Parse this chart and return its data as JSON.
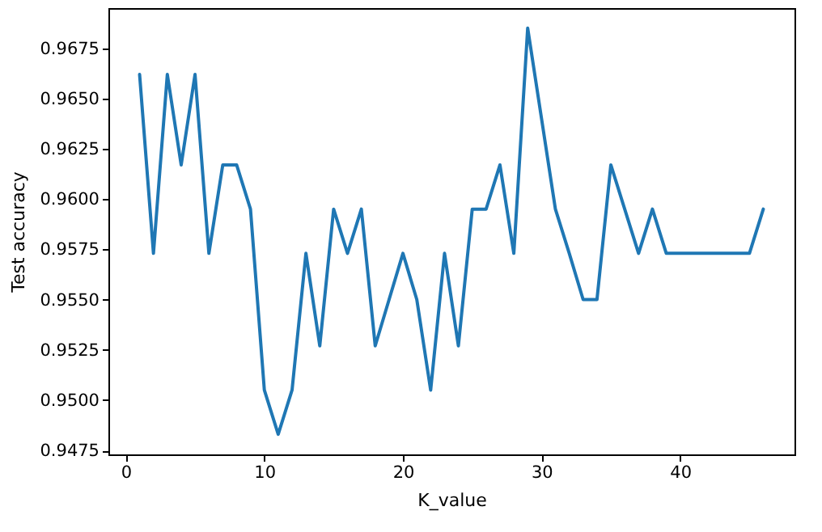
{
  "chart_data": {
    "type": "line",
    "xlabel": "K_value",
    "ylabel": "Test accuracy",
    "x": [
      1,
      2,
      3,
      4,
      5,
      6,
      7,
      8,
      9,
      10,
      11,
      12,
      13,
      14,
      15,
      16,
      17,
      18,
      19,
      20,
      21,
      22,
      23,
      24,
      25,
      26,
      27,
      28,
      29,
      30,
      31,
      32,
      33,
      34,
      35,
      36,
      37,
      38,
      39,
      40,
      41,
      42,
      43,
      44,
      45,
      46
    ],
    "series": [
      {
        "color": "#1f77b4",
        "values": [
          0.9662,
          0.9573,
          0.9662,
          0.9617,
          0.9662,
          0.9573,
          0.9617,
          0.9617,
          0.9595,
          0.9505,
          0.9483,
          0.9505,
          0.9573,
          0.9527,
          0.9595,
          0.9573,
          0.9595,
          0.9527,
          0.955,
          0.9573,
          0.955,
          0.9505,
          0.9573,
          0.9527,
          0.9595,
          0.9595,
          0.9617,
          0.9573,
          0.9685,
          0.964,
          0.9595,
          0.9573,
          0.955,
          0.955,
          0.9617,
          0.9595,
          0.9573,
          0.9595,
          0.9573,
          0.9573,
          0.9573,
          0.9573,
          0.9573,
          0.9573,
          0.9573,
          0.9595
        ]
      }
    ],
    "xlim": [
      -1.25,
      48.25
    ],
    "xticks": [
      0,
      10,
      20,
      30,
      40
    ],
    "ylim": [
      0.9473,
      0.9695
    ],
    "yticks": [
      {
        "value": 0.9475,
        "label": "0.9475"
      },
      {
        "value": 0.95,
        "label": "0.9500"
      },
      {
        "value": 0.9525,
        "label": "0.9525"
      },
      {
        "value": 0.955,
        "label": "0.9550"
      },
      {
        "value": 0.9575,
        "label": "0.9575"
      },
      {
        "value": 0.96,
        "label": "0.9600"
      },
      {
        "value": 0.9625,
        "label": "0.9625"
      },
      {
        "value": 0.965,
        "label": "0.9650"
      },
      {
        "value": 0.9675,
        "label": "0.9675"
      }
    ],
    "grid": false,
    "marker": "none",
    "line_style": "solid"
  }
}
